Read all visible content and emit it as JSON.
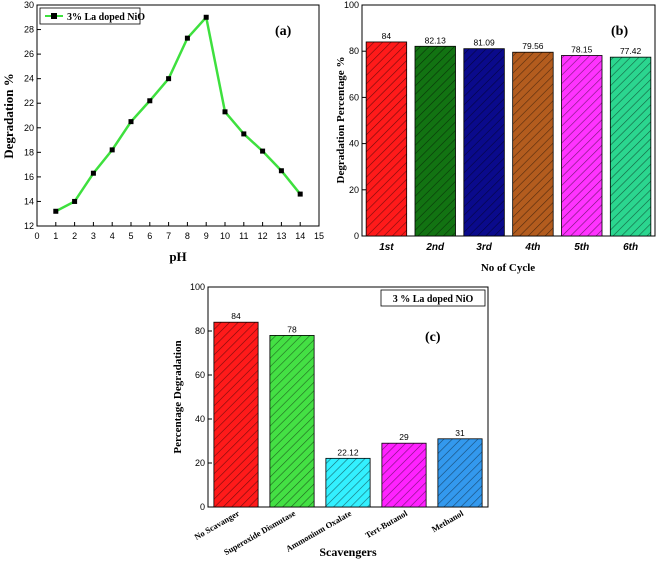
{
  "chart_data": [
    {
      "panel": "(a)",
      "type": "line",
      "title": "",
      "xlabel": "pH",
      "ylabel": "Degradation %",
      "xlim": [
        0,
        15
      ],
      "ylim": [
        12,
        30
      ],
      "xticks": [
        0,
        1,
        2,
        3,
        4,
        5,
        6,
        7,
        8,
        9,
        10,
        11,
        12,
        13,
        14,
        15
      ],
      "yticks": [
        12,
        14,
        16,
        18,
        20,
        22,
        24,
        26,
        28,
        30
      ],
      "legend": "3% La doped NiO",
      "legend_position": "top-left",
      "line_color": "#3ee03e",
      "marker_color": "#000000",
      "series": [
        {
          "name": "3% La doped NiO",
          "x": [
            1,
            2,
            3,
            4,
            5,
            6,
            7,
            8,
            9,
            10,
            11,
            12,
            13,
            14
          ],
          "y": [
            13.2,
            14.0,
            16.3,
            18.2,
            20.5,
            22.2,
            24.0,
            27.3,
            29.0,
            21.3,
            19.5,
            18.1,
            16.5,
            14.6
          ]
        }
      ]
    },
    {
      "panel": "(b)",
      "type": "bar",
      "xlabel": "No of Cycle",
      "ylabel": "Degradation Percentage %",
      "ylim": [
        0,
        100
      ],
      "yticks": [
        0,
        20,
        40,
        60,
        80,
        100
      ],
      "categories": [
        "1st",
        "2nd",
        "3rd",
        "4th",
        "5th",
        "6th"
      ],
      "values": [
        84,
        82.13,
        81.09,
        79.56,
        78.15,
        77.42
      ],
      "data_labels": [
        "84",
        "82.13",
        "81.09",
        "79.56",
        "78.15",
        "77.42"
      ],
      "colors": [
        "#ff1a1a",
        "#127312",
        "#0a0a8c",
        "#b35c1e",
        "#ff33ff",
        "#2bd68f"
      ]
    },
    {
      "panel": "(c)",
      "type": "bar",
      "xlabel": "Scavengers",
      "ylabel": "Percentage Degradation",
      "ylim": [
        0,
        100
      ],
      "yticks": [
        0,
        20,
        40,
        60,
        80,
        100
      ],
      "legend": "3 % La doped NiO",
      "legend_position": "top-right",
      "categories": [
        "No Scavanger",
        "Superoxide Dismutase",
        "Ammonium Oxalate",
        "Tert-Butanol",
        "Methanol"
      ],
      "values": [
        84,
        78,
        22.12,
        29,
        31
      ],
      "data_labels": [
        "84",
        "78",
        "22.12",
        "29",
        "31"
      ],
      "colors": [
        "#ff1a1a",
        "#44e044",
        "#33f0ff",
        "#ff22ff",
        "#3399ee"
      ]
    }
  ]
}
